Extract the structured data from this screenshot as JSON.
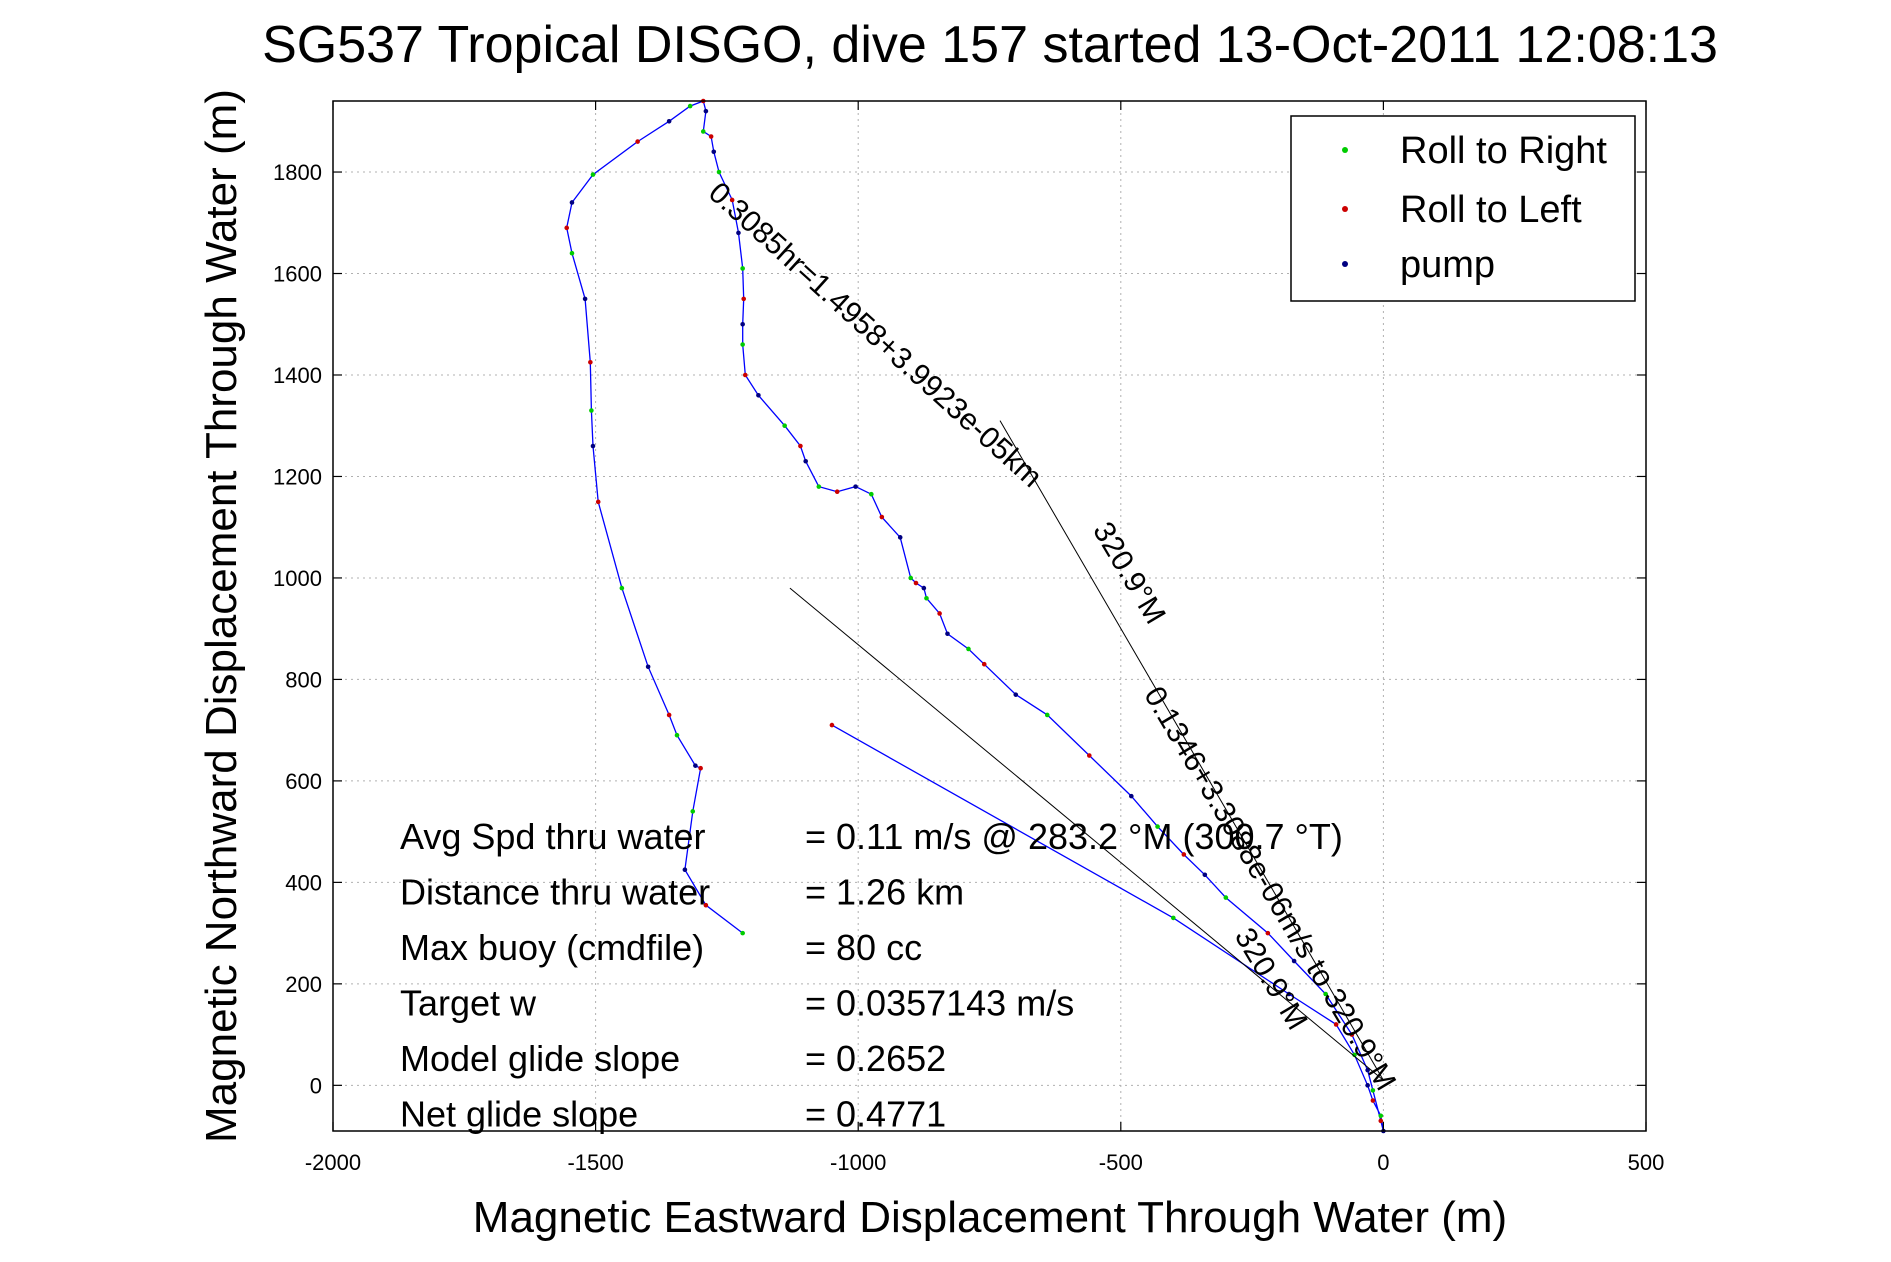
{
  "chart_data": {
    "type": "line",
    "title": "SG537 Tropical DISGO, dive 157 started 13-Oct-2011 12:08:13",
    "xlabel": "Magnetic Eastward Displacement Through Water (m)",
    "ylabel": "Magnetic Northward Displacement Through Water (m)",
    "xlim": [
      -2000,
      500
    ],
    "ylim": [
      -90,
      1940
    ],
    "xticks": [
      "-2000",
      "-1500",
      "-1000",
      "-500",
      "0",
      "500"
    ],
    "yticks": [
      "0",
      "200",
      "400",
      "600",
      "800",
      "1000",
      "1200",
      "1400",
      "1600",
      "1800"
    ],
    "grid": true,
    "legend_position": "top-right",
    "legend": [
      {
        "label": "Roll to Right",
        "color": "#00cc00"
      },
      {
        "label": "Roll to Left",
        "color": "#cc0000"
      },
      {
        "label": "pump",
        "color": "#000080"
      }
    ],
    "series": [
      {
        "name": "",
        "color": "#0000ff",
        "x": [
          -1220,
          -1290,
          -1330,
          -1315,
          -1300,
          -1310,
          -1345,
          -1360,
          -1400,
          -1450,
          -1495,
          -1505,
          -1508,
          -1510,
          -1520,
          -1545,
          -1555,
          -1545,
          -1505,
          -1420,
          -1360,
          -1320,
          -1295,
          -1290,
          -1295,
          -1280,
          -1275,
          -1265,
          -1240,
          -1228,
          -1220,
          -1218,
          -1220,
          -1220,
          -1215,
          -1190,
          -1140,
          -1110,
          -1100,
          -1075,
          -1040,
          -1005,
          -975,
          -955,
          -920,
          -900,
          -890,
          -875,
          -870,
          -845,
          -830,
          -790,
          -760,
          -700,
          -640,
          -560,
          -480,
          -430,
          -380,
          -340,
          -300,
          -220,
          -170,
          -110,
          -60,
          -30,
          -20,
          -5,
          0,
          -5,
          -20,
          -30,
          -55,
          -90,
          -180,
          -400,
          -1050
        ],
        "y": [
          300,
          355,
          425,
          540,
          625,
          630,
          690,
          730,
          825,
          980,
          1150,
          1260,
          1330,
          1425,
          1550,
          1640,
          1690,
          1740,
          1795,
          1860,
          1900,
          1930,
          1940,
          1920,
          1880,
          1870,
          1840,
          1800,
          1745,
          1680,
          1610,
          1550,
          1500,
          1460,
          1400,
          1360,
          1300,
          1260,
          1230,
          1180,
          1170,
          1180,
          1165,
          1120,
          1080,
          1000,
          990,
          980,
          960,
          930,
          890,
          860,
          830,
          770,
          730,
          650,
          570,
          510,
          455,
          415,
          370,
          300,
          245,
          180,
          100,
          30,
          -10,
          -70,
          -90,
          -60,
          -30,
          0,
          60,
          120,
          180,
          330,
          710
        ]
      }
    ],
    "lines": [
      {
        "x": [
          0,
          -1130
        ],
        "y": [
          10,
          980
        ]
      },
      {
        "x": [
          0,
          -730
        ],
        "y": [
          10,
          1310
        ]
      }
    ],
    "annotations": [
      {
        "text": "0.1346+3.3088e-06m/s to 320.9°M",
        "x": -232,
        "y": 378,
        "rotation": 59.3
      },
      {
        "text": "0.3085hr=1.4958+3.9923e-05km",
        "x": -980,
        "y": 1465,
        "rotation": 42.2
      },
      {
        "text": "320.9°M",
        "x": -500,
        "y": 1000,
        "rotation": 59.3
      },
      {
        "text": "320.9°M",
        "x": -230,
        "y": 200,
        "rotation": 59.3
      }
    ],
    "stats": [
      {
        "label": "Avg Spd thru water",
        "value": "=  0.11 m/s @ 283.2 °M (300.7 °T)"
      },
      {
        "label": "Distance thru water",
        "value": "=  1.26 km"
      },
      {
        "label": "Max buoy (cmdfile)",
        "value": "= 80 cc"
      },
      {
        "label": "Target w",
        "value": "= 0.0357143 m/s"
      },
      {
        "label": "Model glide slope",
        "value": "= 0.2652"
      },
      {
        "label": "Net glide slope",
        "value": "= 0.4771"
      }
    ]
  }
}
